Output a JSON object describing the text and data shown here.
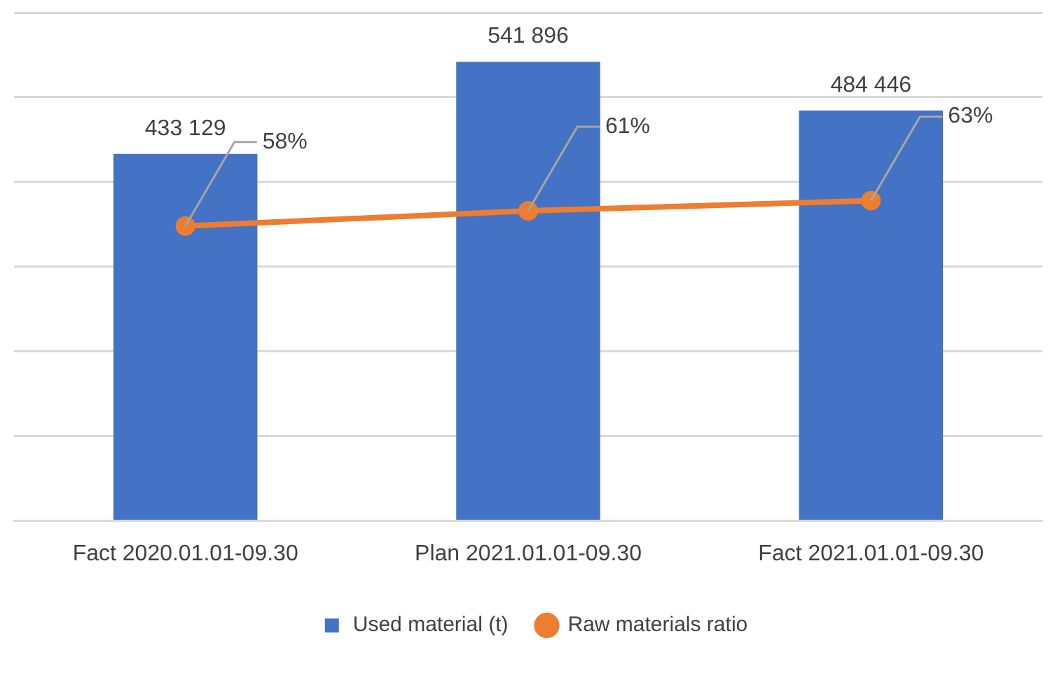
{
  "chart_data": {
    "type": "bar",
    "categories": [
      "Fact 2020.01.01-09.30",
      "Plan 2021.01.01-09.30",
      "Fact 2021.01.01-09.30"
    ],
    "series": [
      {
        "name": "Used material (t)",
        "type": "bar",
        "color": "#4472c4",
        "values": [
          433129,
          541896,
          484446
        ],
        "value_labels": [
          "433 129",
          "541 896",
          "484 446"
        ]
      },
      {
        "name": "Raw materials ratio",
        "type": "line",
        "axis": "y2",
        "color": "#ed7d31",
        "values": [
          58,
          61,
          63
        ],
        "value_labels": [
          "58%",
          "61%",
          "63%"
        ]
      }
    ],
    "yticks": [
      {
        "value": 0,
        "label": null
      },
      {
        "value": 100000,
        "label": null
      },
      {
        "value": 200000,
        "label": null
      },
      {
        "value": 300000,
        "label": null
      },
      {
        "value": 400000,
        "label": null
      },
      {
        "value": 500000,
        "label": null
      },
      {
        "value": 600000,
        "label": null
      }
    ],
    "grid": "y",
    "tick_labels": "x",
    "legend": "bottom",
    "marker": "circle"
  }
}
